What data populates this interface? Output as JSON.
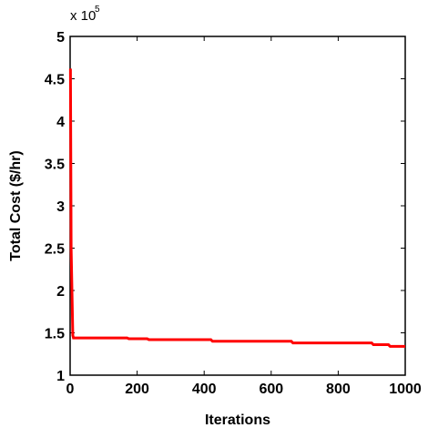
{
  "chart_data": {
    "type": "line",
    "x_label": "Iterations",
    "y_label": "Total Cost ($/hr)",
    "y_multiplier": "x 10",
    "y_multiplier_exponent": "5",
    "x": [
      1,
      3,
      8,
      10,
      170,
      175,
      230,
      235,
      420,
      425,
      660,
      665,
      900,
      905,
      950,
      955,
      1000
    ],
    "series": [
      {
        "color": "#ff0000",
        "values": [
          4.62,
          2.5,
          1.47,
          1.44,
          1.44,
          1.43,
          1.43,
          1.42,
          1.42,
          1.4,
          1.4,
          1.38,
          1.38,
          1.36,
          1.36,
          1.34,
          1.34
        ]
      }
    ],
    "xlim": [
      0,
      1000
    ],
    "xticks": [
      0,
      200,
      400,
      600,
      800,
      1000
    ],
    "ylim": [
      1,
      5
    ],
    "yticks": [
      1,
      1.5,
      2,
      2.5,
      3,
      3.5,
      4,
      4.5,
      5
    ],
    "grid": false
  }
}
